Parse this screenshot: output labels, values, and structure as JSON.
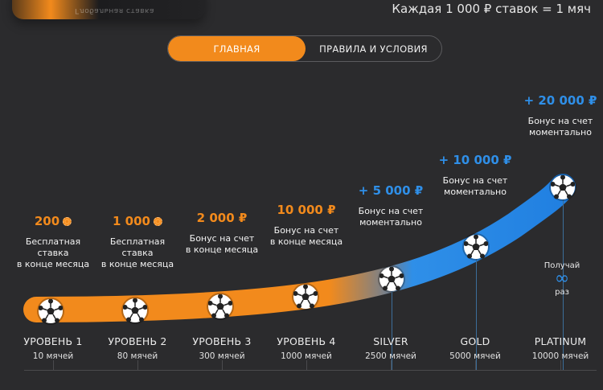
{
  "header": {
    "card_text": "Глобальная ставка",
    "rule": "Каждая 1 000 ₽ ставок = 1 мяч"
  },
  "tabs": {
    "main": "ГЛАВНАЯ",
    "rules": "ПРАВИЛА И УСЛОВИЯ"
  },
  "colors": {
    "accent": "#f28a1c",
    "blue": "#2f8fe8",
    "background": "#2b2b2d"
  },
  "levels": [
    {
      "name": "УРОВЕНЬ 1",
      "balls": "10 мячей",
      "reward": "200",
      "reward_icon": "coin-icon",
      "reward_desc": "Бесплатная\nставка\nв конце месяца"
    },
    {
      "name": "УРОВЕНЬ 2",
      "balls": "80 мячей",
      "reward": "1 000",
      "reward_icon": "coin-icon",
      "reward_desc": "Бесплатная\nставка\nв конце месяца"
    },
    {
      "name": "УРОВЕНЬ 3",
      "balls": "300 мячей",
      "reward": "2 000 ₽",
      "reward_desc": "Бонус на счет\nв конце месяца"
    },
    {
      "name": "УРОВЕНЬ 4",
      "balls": "1000 мячей",
      "reward": "10 000 ₽",
      "reward_desc": "Бонус на счет\nв конце месяца"
    },
    {
      "name": "SILVER",
      "balls": "2500 мячей",
      "reward": "+ 5 000 ₽",
      "reward_desc": "Бонус на счет\nмоментально"
    },
    {
      "name": "GOLD",
      "balls": "5000 мячей",
      "reward": "+ 10 000 ₽",
      "reward_desc": "Бонус на счет\nмоментально"
    },
    {
      "name": "PLATINUM",
      "balls": "10000 мячей",
      "reward": "+ 20 000 ₽",
      "reward_desc": "Бонус на счет\nмоментально"
    }
  ],
  "platinum_extra": {
    "top": "Получай",
    "glyph": "∞",
    "bottom": "раз"
  }
}
